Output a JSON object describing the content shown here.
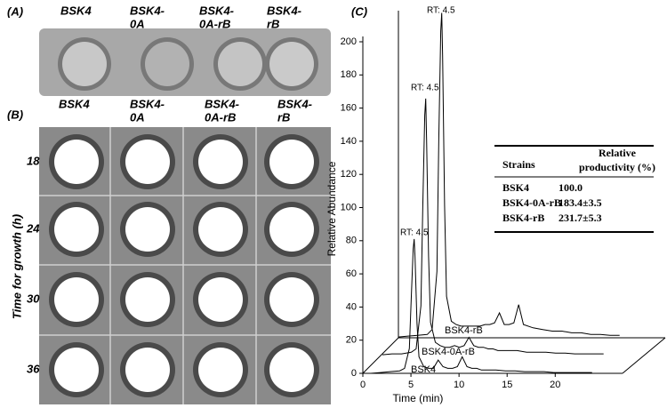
{
  "panel_a": {
    "label": "(A)",
    "columns": [
      [
        "BSK4"
      ],
      [
        "BSK4-",
        "0A"
      ],
      [
        "BSK4-",
        "0A-rB"
      ],
      [
        "BSK4-",
        "rB"
      ]
    ]
  },
  "panel_b": {
    "label": "(B)",
    "columns": [
      [
        "BSK4"
      ],
      [
        "BSK4-",
        "0A"
      ],
      [
        "BSK4-",
        "0A-rB"
      ],
      [
        "BSK4-",
        "rB"
      ]
    ],
    "row_axis_label": "Time for growth (h)",
    "rows": [
      "18",
      "24",
      "30",
      "36"
    ]
  },
  "chart_data": {
    "type": "line",
    "panel_label": "(C)",
    "xlabel": "Time (min)",
    "ylabel": "Relative Abundance",
    "xlim": [
      0,
      27
    ],
    "xticks": [
      0,
      5,
      10,
      15,
      20
    ],
    "ylim": [
      0,
      200
    ],
    "yticks": [
      0,
      20,
      40,
      60,
      80,
      100,
      120,
      140,
      160,
      180,
      200
    ],
    "x": [
      0,
      1,
      2,
      3,
      3.5,
      4,
      4.2,
      4.4,
      4.5,
      4.6,
      4.8,
      5,
      5.5,
      6,
      6.5,
      7,
      7.5,
      8,
      8.5,
      9,
      9.5,
      10,
      10.5,
      11,
      11.5,
      12,
      12.5,
      13,
      14,
      15,
      16,
      17,
      18,
      19,
      20,
      21,
      22,
      23
    ],
    "series": [
      {
        "name": "BSK4",
        "color": "#000000",
        "values": [
          0,
          0.5,
          1,
          1.5,
          3,
          15,
          45,
          75,
          81,
          70,
          30,
          10,
          4,
          3,
          3,
          8,
          4,
          3,
          3,
          4,
          10,
          4,
          3,
          3,
          2,
          2,
          2,
          2,
          1.5,
          1.5,
          1,
          1,
          1,
          0.5,
          0.5,
          0.5,
          0.5,
          0.5
        ]
      },
      {
        "name": "BSK4-0A-rB",
        "color": "#000000",
        "values": [
          0.5,
          1,
          1,
          2,
          4,
          30,
          90,
          145,
          155,
          130,
          60,
          20,
          8,
          6,
          5,
          5,
          6,
          5,
          6,
          11,
          6,
          5,
          5,
          4,
          4,
          3,
          3,
          3,
          3,
          2,
          2,
          2,
          1.5,
          1.5,
          1,
          1,
          1,
          1
        ]
      },
      {
        "name": "BSK4-rB",
        "color": "#000000",
        "values": [
          0.5,
          1,
          1.5,
          2,
          5,
          40,
          120,
          185,
          196,
          170,
          80,
          25,
          10,
          8,
          7,
          7,
          7,
          7,
          7,
          8,
          8,
          9,
          15,
          8,
          8,
          9,
          20,
          8,
          6,
          5,
          4,
          4,
          3,
          3,
          2,
          2,
          1.5,
          1.5
        ]
      }
    ],
    "annotations": [
      "RT: 4.5",
      "RT: 4.5",
      "RT: 4.5"
    ],
    "table": {
      "header": [
        "Strains",
        [
          "Relative",
          "productivity (%)"
        ]
      ],
      "rows": [
        [
          "BSK4",
          "100.0"
        ],
        [
          "BSK4-0A-rB",
          "183.4±3.5"
        ],
        [
          "BSK4-rB",
          "231.7±5.3"
        ]
      ]
    }
  }
}
